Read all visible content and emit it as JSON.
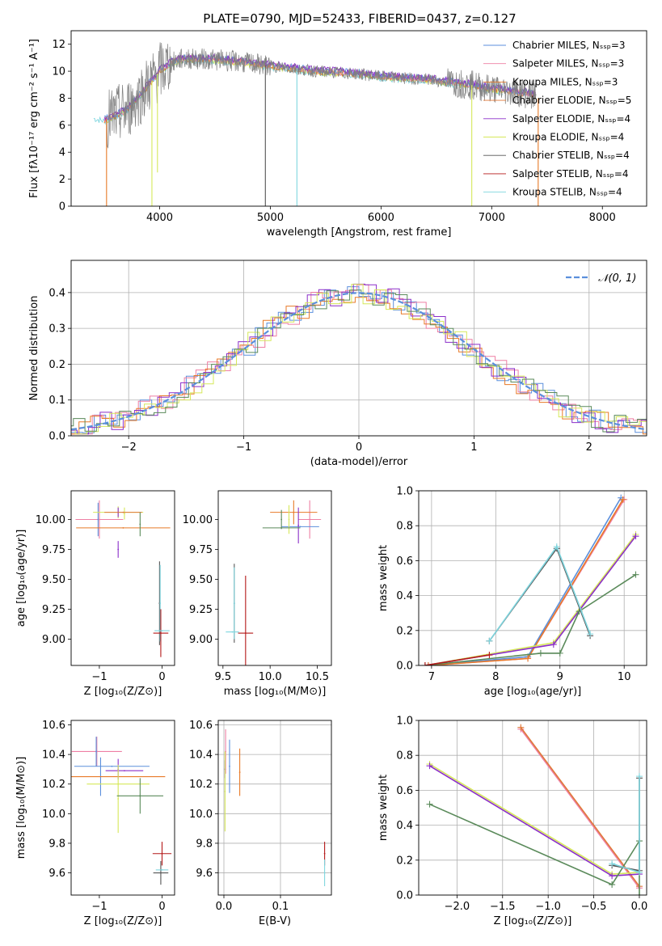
{
  "figure": {
    "title": "PLATE=0790, MJD=52433, FIBERID=0437, z=0.127"
  },
  "colors": {
    "chabrier_miles": "#5b8fdc",
    "salpeter_miles": "#ee7fa4",
    "kroupa_miles": "#e87a28",
    "chabrier_elodie": "#e07a3a",
    "salpeter_elodie": "#8b2fc9",
    "kroupa_elodie": "#d6e85a",
    "chabrier_stelib": "#555555",
    "salpeter_stelib": "#b41818",
    "kroupa_stelib": "#7fd6df",
    "spectrum": "#808080",
    "stelib_green": "#5a8a5a",
    "normal_curve": "#5b8fdc"
  },
  "chart_data": [
    {
      "id": "spectrum",
      "type": "line",
      "title": "PLATE=0790, MJD=52433, FIBERID=0437, z=0.127",
      "xlabel": "wavelength [Angstrom, rest frame]",
      "ylabel": "Flux [fλ10⁻¹⁷ erg cm⁻² s⁻¹ A⁻¹]",
      "xlim": [
        3200,
        8400
      ],
      "ylim": [
        0,
        13
      ],
      "grid": false,
      "xticks": [
        "4000",
        "5000",
        "6000",
        "7000",
        "8000"
      ],
      "yticks": [
        "0",
        "2",
        "4",
        "6",
        "8",
        "10",
        "12"
      ],
      "legend_position": "upper-right",
      "legend": [
        "Chabrier MILES, Nₛₛₚ=3",
        "Salpeter MILES, Nₛₛₚ=3",
        "Kroupa MILES, Nₛₛₚ=3",
        "Chabrier ELODIE, Nₛₛₚ=5",
        "Salpeter ELODIE, Nₛₛₚ=4",
        "Kroupa ELODIE, Nₛₛₚ=4",
        "Chabrier STELIB, Nₛₛₚ=4",
        "Salpeter STELIB, Nₛₛₚ=4",
        "Kroupa STELIB, Nₛₛₚ=4"
      ],
      "continuum": {
        "x": [
          3400,
          3500,
          3600,
          3700,
          3800,
          3900,
          4000,
          4100,
          4200,
          4400,
          4600,
          4800,
          5000,
          5200,
          5400,
          5600,
          5800,
          6000,
          6200,
          6400,
          6600,
          6800,
          7000,
          7200,
          7400
        ],
        "y": [
          6.6,
          6.4,
          6.7,
          7.1,
          8.0,
          9.0,
          10.0,
          10.6,
          10.9,
          10.9,
          10.8,
          10.6,
          10.4,
          10.2,
          10.0,
          9.9,
          9.8,
          9.6,
          9.5,
          9.4,
          9.2,
          9.0,
          8.7,
          8.5,
          8.2
        ]
      },
      "dips": [
        {
          "x": 3520,
          "y": 0
        },
        {
          "x": 3930,
          "y": 0
        },
        {
          "x": 3980,
          "y": 2.5
        },
        {
          "x": 4955,
          "y": 0
        },
        {
          "x": 5240,
          "y": 0
        },
        {
          "x": 6820,
          "y": 0
        },
        {
          "x": 7420,
          "y": 0
        }
      ]
    },
    {
      "id": "residuals",
      "type": "line",
      "xlabel": "(data-model)/error",
      "ylabel": "Normed distribution",
      "xlim": [
        -2.5,
        2.5
      ],
      "ylim": [
        0,
        0.49
      ],
      "grid": true,
      "xticks": [
        "−2",
        "−1",
        "0",
        "1",
        "2"
      ],
      "yticks": [
        "0.0",
        "0.1",
        "0.2",
        "0.3",
        "0.4"
      ],
      "legend_position": "upper-right",
      "legend": [
        "𝒩(0, 1)"
      ],
      "normal_curve": {
        "mean": 0,
        "sigma": 1
      }
    },
    {
      "id": "age_vs_Z",
      "type": "scatter",
      "xlabel": "Z [log₁₀(Z/Z⊙)]",
      "ylabel": "age  [log₁₀(age/yr)]",
      "xlim": [
        -1.45,
        0.2
      ],
      "ylim": [
        8.78,
        10.24
      ],
      "grid": false,
      "xticks": [
        "−1",
        "0"
      ],
      "yticks": [
        "9.00",
        "9.25",
        "9.50",
        "9.75",
        "10.00"
      ],
      "points": [
        {
          "x": -1.0,
          "y": 10.0,
          "xerr": 0.38,
          "yerr": 0.16,
          "color": "salpeter_miles"
        },
        {
          "x": -1.02,
          "y": 10.0,
          "xerr": 0.0,
          "yerr": 0.14,
          "color": "chabrier_miles"
        },
        {
          "x": -0.7,
          "y": 10.06,
          "xerr": 0.4,
          "yerr": 0.05,
          "color": "kroupa_elodie"
        },
        {
          "x": -0.7,
          "y": 10.06,
          "xerr": 0.0,
          "yerr": 0.04,
          "color": "salpeter_elodie"
        },
        {
          "x": -0.6,
          "y": 10.05,
          "xerr": 0.0,
          "yerr": 0.05,
          "color": "kroupa_elodie"
        },
        {
          "x": -0.62,
          "y": 10.06,
          "xerr": 0.3,
          "yerr": 0.0,
          "color": "chabrier_elodie"
        },
        {
          "x": -0.7,
          "y": 9.75,
          "xerr": 0.0,
          "yerr": 0.07,
          "color": "salpeter_elodie"
        },
        {
          "x": -0.62,
          "y": 9.93,
          "xerr": 0.75,
          "yerr": 0.0,
          "color": "kroupa_miles"
        },
        {
          "x": -0.35,
          "y": 9.96,
          "xerr": 0.0,
          "yerr": 0.1,
          "color": "stelib_green"
        },
        {
          "x": -0.04,
          "y": 9.3,
          "xerr": 0.0,
          "yerr": 0.35,
          "color": "chabrier_stelib"
        },
        {
          "x": -0.03,
          "y": 9.3,
          "xerr": 0.0,
          "yerr": 0.32,
          "color": "kroupa_stelib"
        },
        {
          "x": -0.02,
          "y": 9.05,
          "xerr": 0.12,
          "yerr": 0.2,
          "color": "salpeter_stelib"
        },
        {
          "x": 0.0,
          "y": 9.07,
          "xerr": 0.12,
          "yerr": 0.0,
          "color": "kroupa_stelib"
        }
      ]
    },
    {
      "id": "age_vs_mass",
      "type": "scatter",
      "xlabel": "mass [log₁₀(M/M⊙)]",
      "xlim": [
        9.45,
        10.65
      ],
      "ylim": [
        8.78,
        10.24
      ],
      "grid": false,
      "xticks": [
        "9.5",
        "10.0",
        "10.5"
      ],
      "yticks": [
        "9.00",
        "9.25",
        "9.50",
        "9.75",
        "10.00"
      ],
      "points": [
        {
          "x": 10.42,
          "y": 10.0,
          "xerr": 0.12,
          "yerr": 0.16,
          "color": "salpeter_miles"
        },
        {
          "x": 10.32,
          "y": 9.94,
          "xerr": 0.2,
          "yerr": 0.0,
          "color": "chabrier_miles"
        },
        {
          "x": 10.25,
          "y": 10.06,
          "xerr": 0.25,
          "yerr": 0.1,
          "color": "kroupa_miles"
        },
        {
          "x": 10.3,
          "y": 9.95,
          "xerr": 0.0,
          "yerr": 0.15,
          "color": "salpeter_elodie"
        },
        {
          "x": 10.2,
          "y": 10.0,
          "xerr": 0.0,
          "yerr": 0.12,
          "color": "kroupa_elodie"
        },
        {
          "x": 10.12,
          "y": 9.93,
          "xerr": 0.2,
          "yerr": 0.0,
          "color": "stelib_green"
        },
        {
          "x": 10.12,
          "y": 10.0,
          "xerr": 0.0,
          "yerr": 0.08,
          "color": "stelib_green"
        },
        {
          "x": 9.62,
          "y": 9.3,
          "xerr": 0.0,
          "yerr": 0.33,
          "color": "chabrier_stelib"
        },
        {
          "x": 9.62,
          "y": 9.3,
          "xerr": 0.0,
          "yerr": 0.3,
          "color": "kroupa_stelib"
        },
        {
          "x": 9.74,
          "y": 9.05,
          "xerr": 0.08,
          "yerr": 0.48,
          "color": "salpeter_stelib"
        },
        {
          "x": 9.6,
          "y": 9.06,
          "xerr": 0.07,
          "yerr": 0.0,
          "color": "kroupa_stelib"
        }
      ]
    },
    {
      "id": "mass_weight_vs_age",
      "type": "line",
      "xlabel": "age  [log₁₀(age/yr)]",
      "ylabel": "mass weight",
      "xlim": [
        6.8,
        10.35
      ],
      "ylim": [
        0,
        1
      ],
      "grid": true,
      "xticks": [
        "7",
        "8",
        "9",
        "10"
      ],
      "yticks": [
        "0.0",
        "0.2",
        "0.4",
        "0.6",
        "0.8",
        "1.0"
      ],
      "series": [
        {
          "color": "salpeter_miles",
          "x": [
            6.95,
            8.5,
            10.0
          ],
          "y": [
            0.0,
            0.04,
            0.95
          ]
        },
        {
          "color": "chabrier_miles",
          "x": [
            6.95,
            8.5,
            9.95
          ],
          "y": [
            0.0,
            0.05,
            0.96
          ]
        },
        {
          "color": "kroupa_miles",
          "x": [
            6.95,
            8.5,
            9.98
          ],
          "y": [
            0.0,
            0.04,
            0.95
          ]
        },
        {
          "color": "kroupa_elodie",
          "x": [
            6.9,
            8.9,
            10.18
          ],
          "y": [
            0.0,
            0.13,
            0.75
          ]
        },
        {
          "color": "salpeter_elodie",
          "x": [
            6.9,
            8.9,
            10.18
          ],
          "y": [
            0.0,
            0.12,
            0.74
          ]
        },
        {
          "color": "stelib_green",
          "x": [
            6.9,
            8.7,
            9.0,
            9.3,
            10.18
          ],
          "y": [
            0.0,
            0.07,
            0.07,
            0.31,
            0.52
          ]
        },
        {
          "color": "chabrier_stelib",
          "x": [
            7.9,
            8.95,
            9.47
          ],
          "y": [
            0.14,
            0.67,
            0.17
          ]
        },
        {
          "color": "kroupa_stelib",
          "x": [
            7.9,
            8.95,
            9.47
          ],
          "y": [
            0.14,
            0.68,
            0.18
          ]
        },
        {
          "color": "salpeter_stelib",
          "x": [
            6.9,
            7.9
          ],
          "y": [
            0.0,
            0.06
          ]
        }
      ]
    },
    {
      "id": "mass_vs_Z",
      "type": "scatter",
      "xlabel": "Z [log₁₀(Z/Z⊙)]",
      "ylabel": "mass [log₁₀(M/M⊙)]",
      "xlim": [
        -1.45,
        0.2
      ],
      "ylim": [
        9.45,
        10.63
      ],
      "grid": false,
      "xticks": [
        "−1",
        "0"
      ],
      "yticks": [
        "9.6",
        "9.8",
        "10.0",
        "10.2",
        "10.4",
        "10.6"
      ],
      "points": [
        {
          "x": -1.04,
          "y": 10.42,
          "xerr": 0.4,
          "yerr": 0.1,
          "color": "salpeter_miles"
        },
        {
          "x": -1.05,
          "y": 10.42,
          "xerr": 0.0,
          "yerr": 0.1,
          "color": "chabrier_miles"
        },
        {
          "x": -0.8,
          "y": 10.32,
          "xerr": 0.6,
          "yerr": 0.0,
          "color": "chabrier_miles"
        },
        {
          "x": -0.98,
          "y": 10.25,
          "xerr": 0.0,
          "yerr": 0.13,
          "color": "chabrier_miles"
        },
        {
          "x": -0.7,
          "y": 10.25,
          "xerr": 0.75,
          "yerr": 0.0,
          "color": "kroupa_miles"
        },
        {
          "x": -0.6,
          "y": 10.29,
          "xerr": 0.3,
          "yerr": 0.0,
          "color": "salpeter_elodie"
        },
        {
          "x": -0.7,
          "y": 10.3,
          "xerr": 0.0,
          "yerr": 0.07,
          "color": "salpeter_elodie"
        },
        {
          "x": -0.7,
          "y": 10.2,
          "xerr": 0.5,
          "yerr": 0.0,
          "color": "kroupa_elodie"
        },
        {
          "x": -0.7,
          "y": 10.1,
          "xerr": 0.0,
          "yerr": 0.23,
          "color": "kroupa_elodie"
        },
        {
          "x": -0.35,
          "y": 10.12,
          "xerr": 0.37,
          "yerr": 0.0,
          "color": "stelib_green"
        },
        {
          "x": -0.35,
          "y": 10.12,
          "xerr": 0.0,
          "yerr": 0.12,
          "color": "stelib_green"
        },
        {
          "x": 0.0,
          "y": 9.73,
          "xerr": 0.15,
          "yerr": 0.08,
          "color": "salpeter_stelib"
        },
        {
          "x": -0.02,
          "y": 9.6,
          "xerr": 0.12,
          "yerr": 0.08,
          "color": "chabrier_stelib"
        },
        {
          "x": 0.0,
          "y": 9.62,
          "xerr": 0.1,
          "yerr": 0.0,
          "color": "kroupa_stelib"
        }
      ]
    },
    {
      "id": "mass_vs_ebv",
      "type": "scatter",
      "xlabel": "E(B-V)",
      "xlim": [
        -0.01,
        0.19
      ],
      "ylim": [
        9.45,
        10.63
      ],
      "grid": true,
      "xticks": [
        "0.0",
        "0.1"
      ],
      "yticks": [
        "9.6",
        "9.8",
        "10.0",
        "10.2",
        "10.4",
        "10.6"
      ],
      "points": [
        {
          "x": 0.003,
          "y": 10.42,
          "xerr": 0.0,
          "yerr": 0.15,
          "color": "salpeter_miles"
        },
        {
          "x": 0.01,
          "y": 10.32,
          "xerr": 0.0,
          "yerr": 0.18,
          "color": "chabrier_miles"
        },
        {
          "x": 0.028,
          "y": 10.28,
          "xerr": 0.0,
          "yerr": 0.16,
          "color": "kroupa_miles"
        },
        {
          "x": 0.002,
          "y": 10.3,
          "xerr": 0.0,
          "yerr": 0.06,
          "color": "salpeter_elodie"
        },
        {
          "x": 0.002,
          "y": 10.15,
          "xerr": 0.0,
          "yerr": 0.27,
          "color": "kroupa_elodie"
        },
        {
          "x": 0.178,
          "y": 9.73,
          "xerr": 0.0,
          "yerr": 0.08,
          "color": "salpeter_stelib"
        },
        {
          "x": 0.178,
          "y": 9.6,
          "xerr": 0.0,
          "yerr": 0.09,
          "color": "kroupa_stelib"
        }
      ]
    },
    {
      "id": "mass_weight_vs_Z",
      "type": "line",
      "xlabel": "Z [log₁₀(Z/Z⊙)]",
      "ylabel": "mass weight",
      "xlim": [
        -2.42,
        0.08
      ],
      "ylim": [
        0,
        1
      ],
      "grid": true,
      "xticks": [
        "−2.0",
        "−1.5",
        "−1.0",
        "−0.5",
        "0.0"
      ],
      "yticks": [
        "0.0",
        "0.2",
        "0.4",
        "0.6",
        "0.8",
        "1.0"
      ],
      "series": [
        {
          "color": "salpeter_miles",
          "x": [
            -1.3,
            0.0
          ],
          "y": [
            0.95,
            0.04
          ]
        },
        {
          "color": "chabrier_elodie",
          "x": [
            -1.3,
            0.0
          ],
          "y": [
            0.96,
            0.05
          ]
        },
        {
          "color": "kroupa_elodie",
          "x": [
            -2.3,
            -0.3,
            0.0
          ],
          "y": [
            0.75,
            0.12,
            0.13
          ]
        },
        {
          "color": "salpeter_elodie",
          "x": [
            -2.3,
            -0.3,
            0.0
          ],
          "y": [
            0.74,
            0.11,
            0.12
          ]
        },
        {
          "color": "stelib_green",
          "x": [
            -2.3,
            -0.3,
            0.0,
            0.0
          ],
          "y": [
            0.52,
            0.06,
            0.31,
            0.0
          ]
        },
        {
          "color": "chabrier_stelib",
          "x": [
            -0.3,
            0.0,
            0.0
          ],
          "y": [
            0.17,
            0.14,
            0.67
          ]
        },
        {
          "color": "kroupa_stelib",
          "x": [
            -0.3,
            0.0,
            0.0
          ],
          "y": [
            0.18,
            0.13,
            0.68
          ]
        }
      ]
    }
  ]
}
